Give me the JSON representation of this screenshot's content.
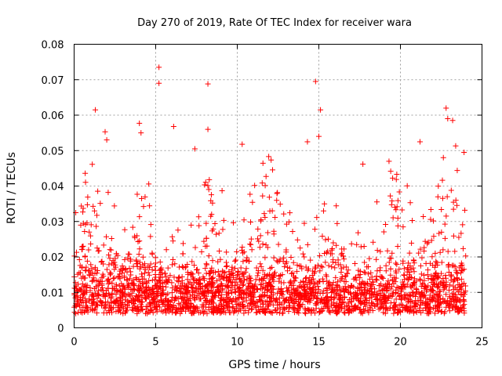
{
  "chart_data": {
    "type": "scatter",
    "title": "Day 270 of 2019, Rate Of TEC Index for receiver wara",
    "xlabel": "GPS time / hours",
    "ylabel": "ROTI / TECUs",
    "xlim": [
      0,
      25
    ],
    "ylim": [
      0,
      0.08
    ],
    "xticks": [
      0,
      5,
      10,
      15,
      20,
      25
    ],
    "xtick_labels": [
      "0",
      "5",
      "10",
      "15",
      "20",
      "25"
    ],
    "yticks": [
      0,
      0.01,
      0.02,
      0.03,
      0.04,
      0.05,
      0.06,
      0.07,
      0.08
    ],
    "ytick_labels": [
      "0",
      "0.01",
      "0.02",
      "0.03",
      "0.04",
      "0.05",
      "0.06",
      "0.07",
      "0.08"
    ],
    "grid": true,
    "marker": "+",
    "series_color": "#ff0000",
    "series": [
      {
        "name": "ROTI",
        "x_range": [
          0,
          24
        ],
        "typical_band": [
          0.004,
          0.02
        ],
        "notable_points": [
          {
            "x": 0.1,
            "y": 0.0325
          },
          {
            "x": 1.3,
            "y": 0.0615
          },
          {
            "x": 1.9,
            "y": 0.0553
          },
          {
            "x": 2.0,
            "y": 0.053
          },
          {
            "x": 4.0,
            "y": 0.0577
          },
          {
            "x": 4.1,
            "y": 0.055
          },
          {
            "x": 5.2,
            "y": 0.0735
          },
          {
            "x": 5.2,
            "y": 0.069
          },
          {
            "x": 6.1,
            "y": 0.0568
          },
          {
            "x": 7.4,
            "y": 0.0505
          },
          {
            "x": 8.2,
            "y": 0.0688
          },
          {
            "x": 8.2,
            "y": 0.056
          },
          {
            "x": 10.3,
            "y": 0.0518
          },
          {
            "x": 14.3,
            "y": 0.0525
          },
          {
            "x": 14.8,
            "y": 0.0695
          },
          {
            "x": 15.1,
            "y": 0.0615
          },
          {
            "x": 15.0,
            "y": 0.054
          },
          {
            "x": 17.7,
            "y": 0.0462
          },
          {
            "x": 19.3,
            "y": 0.047
          },
          {
            "x": 21.2,
            "y": 0.0525
          },
          {
            "x": 22.8,
            "y": 0.062
          },
          {
            "x": 22.9,
            "y": 0.059
          },
          {
            "x": 23.2,
            "y": 0.0585
          },
          {
            "x": 23.9,
            "y": 0.0495
          }
        ]
      }
    ]
  }
}
